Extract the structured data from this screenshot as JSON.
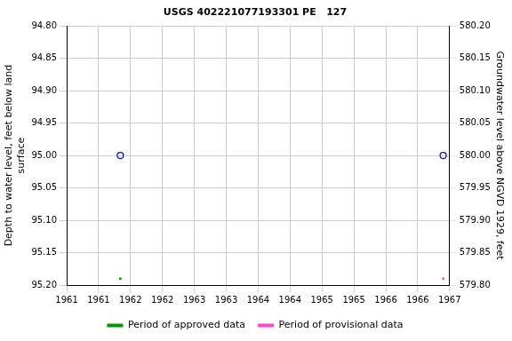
{
  "chart_data": {
    "type": "scatter",
    "title": "USGS 402221077193301 PE   127",
    "y_label": [
      "Depth to water level, feet below land",
      "surface"
    ],
    "y2_label": "Groundwater level above NGVD 1929, feet",
    "xlim": [
      1961,
      1967
    ],
    "xticks": [
      {
        "value": 1961,
        "label": "1961"
      },
      {
        "value": 1961.5,
        "label": "1961"
      },
      {
        "value": 1962,
        "label": "1962"
      },
      {
        "value": 1962.5,
        "label": "1962"
      },
      {
        "value": 1963,
        "label": "1963"
      },
      {
        "value": 1963.5,
        "label": "1963"
      },
      {
        "value": 1964,
        "label": "1964"
      },
      {
        "value": 1964.5,
        "label": "1964"
      },
      {
        "value": 1965,
        "label": "1965"
      },
      {
        "value": 1965.5,
        "label": "1965"
      },
      {
        "value": 1966,
        "label": "1966"
      },
      {
        "value": 1966.5,
        "label": "1966"
      },
      {
        "value": 1967,
        "label": "1967"
      }
    ],
    "ylim": [
      95.2,
      94.8
    ],
    "yticks": [
      {
        "value": 94.8,
        "label": "94.80"
      },
      {
        "value": 94.85,
        "label": "94.85"
      },
      {
        "value": 94.9,
        "label": "94.90"
      },
      {
        "value": 94.95,
        "label": "94.95"
      },
      {
        "value": 95,
        "label": "95.00"
      },
      {
        "value": 95.05,
        "label": "95.05"
      },
      {
        "value": 95.1,
        "label": "95.10"
      },
      {
        "value": 95.15,
        "label": "95.15"
      },
      {
        "value": 95.2,
        "label": "95.20"
      }
    ],
    "y2lim": [
      579.8,
      580.2
    ],
    "y2ticks": [
      {
        "value": 579.8,
        "label": "579.80"
      },
      {
        "value": 579.85,
        "label": "579.85"
      },
      {
        "value": 579.9,
        "label": "579.90"
      },
      {
        "value": 579.95,
        "label": "579.95"
      },
      {
        "value": 580,
        "label": "580.00"
      },
      {
        "value": 580.05,
        "label": "580.05"
      },
      {
        "value": 580.1,
        "label": "580.10"
      },
      {
        "value": 580.15,
        "label": "580.15"
      },
      {
        "value": 580.2,
        "label": "580.20"
      }
    ],
    "grid": true,
    "legend": "bottom",
    "series": [
      {
        "color": "#0000cc",
        "marker": "open_circle",
        "x": [
          1961.84,
          1966.9
        ],
        "values": [
          95.0,
          95.0
        ]
      },
      {
        "name": "Period of approved data",
        "color": "#009900",
        "marker": "square",
        "x": [
          1961.84
        ],
        "values": [
          95.19
        ]
      },
      {
        "name": "Period of provisional data",
        "color": "#ff44cc",
        "marker": "square",
        "x": [
          1966.9
        ],
        "values": [
          95.19
        ]
      }
    ]
  }
}
